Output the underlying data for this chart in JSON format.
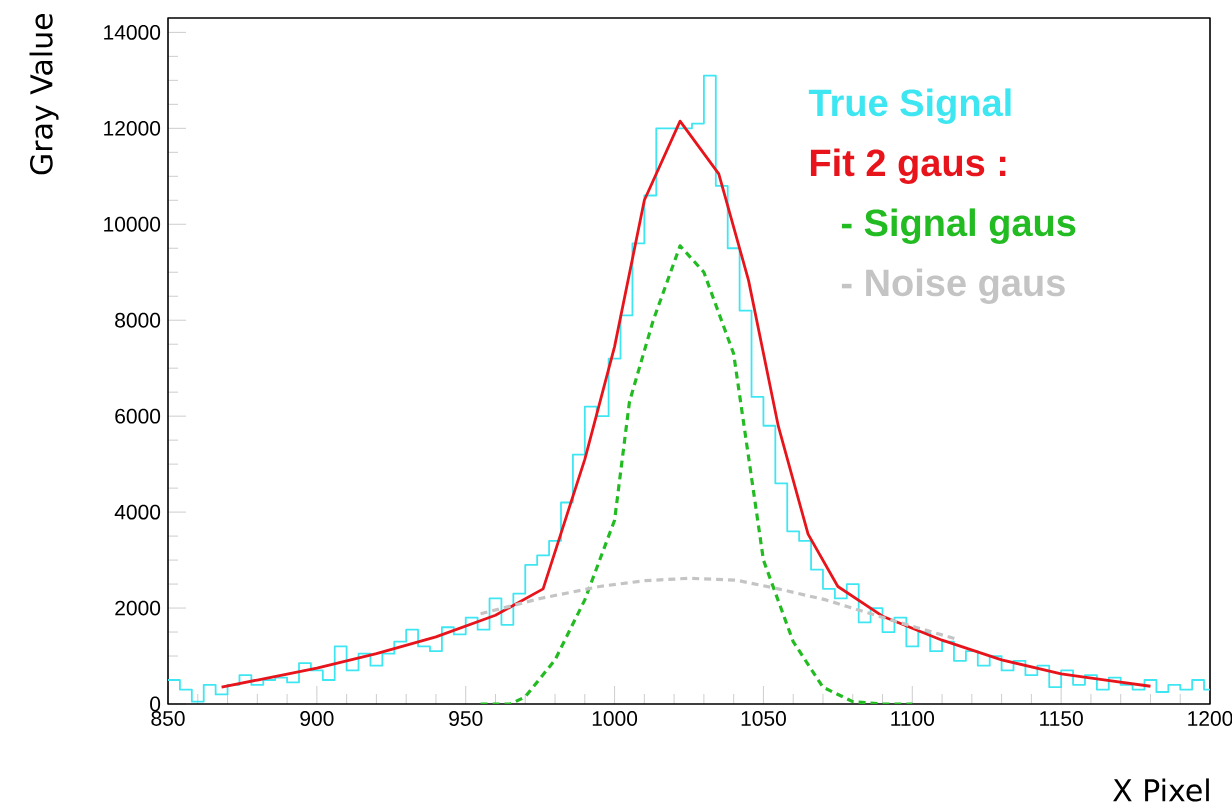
{
  "chart_data": {
    "type": "line",
    "xlabel": "X Pixel",
    "ylabel": "Gray Value",
    "xlim": [
      850,
      1200
    ],
    "ylim": [
      0,
      14300
    ],
    "xticks": [
      850,
      900,
      950,
      1000,
      1050,
      1100,
      1150,
      1200
    ],
    "yticks": [
      0,
      2000,
      4000,
      6000,
      8000,
      10000,
      12000,
      14000
    ],
    "grid": false,
    "legend": "top right",
    "marker": "none",
    "series": [
      {
        "name": "True Signal",
        "type": "step",
        "color": "#3ee6f2",
        "x": [
          850,
          854,
          858,
          862,
          866,
          870,
          874,
          878,
          882,
          886,
          890,
          894,
          898,
          902,
          906,
          910,
          914,
          918,
          922,
          926,
          930,
          934,
          938,
          942,
          946,
          950,
          954,
          958,
          962,
          966,
          970,
          974,
          978,
          982,
          986,
          990,
          994,
          998,
          1002,
          1006,
          1010,
          1014,
          1016,
          1018,
          1020,
          1022,
          1024,
          1026,
          1030,
          1034,
          1038,
          1042,
          1046,
          1050,
          1054,
          1058,
          1062,
          1066,
          1070,
          1074,
          1078,
          1082,
          1086,
          1090,
          1094,
          1098,
          1102,
          1106,
          1110,
          1114,
          1118,
          1122,
          1126,
          1130,
          1134,
          1138,
          1142,
          1146,
          1150,
          1154,
          1158,
          1162,
          1166,
          1170,
          1174,
          1178,
          1182,
          1186,
          1190,
          1194,
          1198,
          1200
        ],
        "values": [
          500,
          300,
          50,
          400,
          200,
          400,
          600,
          400,
          500,
          550,
          450,
          850,
          700,
          500,
          1200,
          700,
          1050,
          800,
          1050,
          1300,
          1550,
          1200,
          1100,
          1600,
          1450,
          1800,
          1550,
          2200,
          1650,
          2300,
          2900,
          3100,
          3400,
          4200,
          5200,
          6200,
          6000,
          7200,
          8100,
          9600,
          10600,
          12000,
          null,
          12000,
          null,
          12000,
          null,
          12100,
          13100,
          10800,
          9500,
          8200,
          6400,
          5800,
          4600,
          3600,
          3400,
          2800,
          2400,
          2200,
          2500,
          1700,
          2000,
          1500,
          1800,
          1200,
          1500,
          1100,
          1300,
          900,
          1100,
          800,
          1000,
          700,
          900,
          600,
          800,
          350,
          700,
          400,
          600,
          300,
          550,
          400,
          300,
          500,
          250,
          400,
          300,
          500,
          300,
          300
        ]
      },
      {
        "name": "Fit 2 gaus :",
        "color": "#e8141b",
        "line_style": "solid",
        "x": [
          868,
          880,
          900,
          920,
          940,
          960,
          976,
          990,
          1000,
          1010,
          1022,
          1035,
          1045,
          1055,
          1065,
          1075,
          1090,
          1110,
          1130,
          1150,
          1165,
          1180
        ],
        "values": [
          350,
          500,
          750,
          1050,
          1400,
          1850,
          2400,
          5100,
          7450,
          10500,
          12150,
          11050,
          8830,
          5790,
          3540,
          2450,
          1830,
          1330,
          920,
          630,
          500,
          370
        ]
      },
      {
        "name": "- Signal gaus",
        "color": "#22bb22",
        "line_style": "dashed",
        "x": [
          955,
          965,
          970,
          980,
          990,
          1000,
          1005,
          1013,
          1022,
          1030,
          1040,
          1050,
          1060,
          1070,
          1080,
          1090,
          1100
        ],
        "values": [
          0,
          0,
          150,
          920,
          2170,
          3830,
          6300,
          8000,
          9550,
          9000,
          7300,
          3000,
          1300,
          350,
          50,
          0,
          0
        ]
      },
      {
        "name": "- Noise gaus",
        "color": "#c4c4c4",
        "line_style": "dashed",
        "x": [
          955,
          975,
          995,
          1010,
          1025,
          1041,
          1055,
          1071,
          1085,
          1100,
          1115
        ],
        "values": [
          1880,
          2200,
          2450,
          2570,
          2620,
          2580,
          2400,
          2170,
          1900,
          1620,
          1350
        ]
      }
    ]
  }
}
